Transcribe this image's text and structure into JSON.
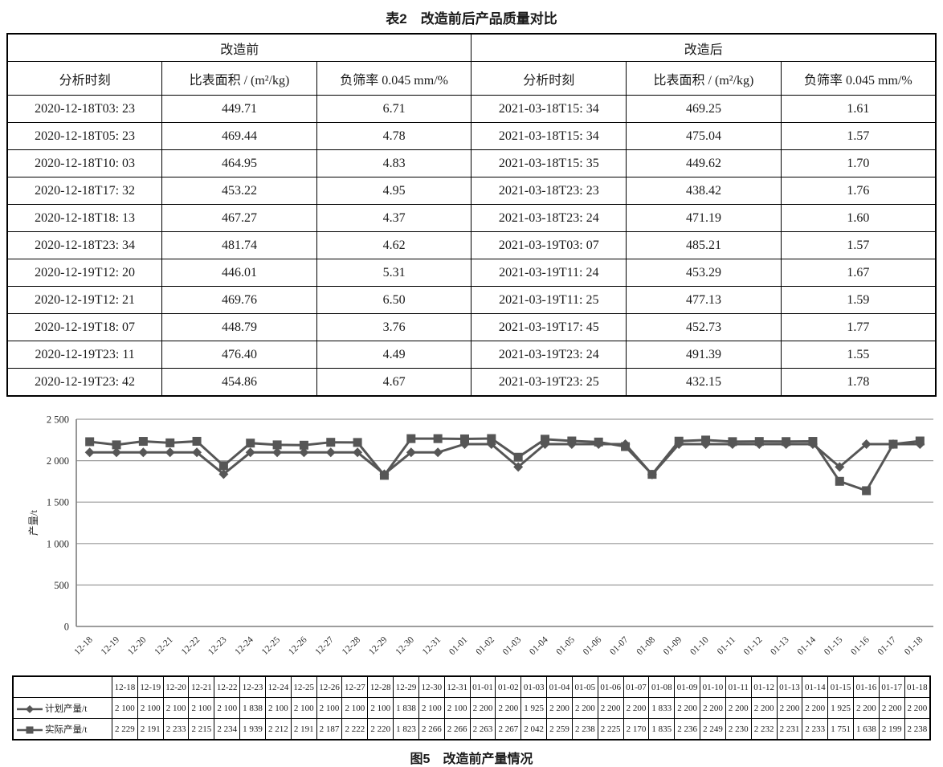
{
  "page": {
    "table_title": "表2　改造前后产品质量对比",
    "figure_caption": "图5　改造前产量情况"
  },
  "quality_table": {
    "group_headers": [
      "改造前",
      "改造后"
    ],
    "col_headers": [
      "分析时刻",
      "比表面积 / (m²/kg)",
      "负筛率 0.045 mm/%",
      "分析时刻",
      "比表面积 / (m²/kg)",
      "负筛率 0.045 mm/%"
    ],
    "rows": [
      [
        "2020-12-18T03: 23",
        "449.71",
        "6.71",
        "2021-03-18T15: 34",
        "469.25",
        "1.61"
      ],
      [
        "2020-12-18T05: 23",
        "469.44",
        "4.78",
        "2021-03-18T15: 34",
        "475.04",
        "1.57"
      ],
      [
        "2020-12-18T10: 03",
        "464.95",
        "4.83",
        "2021-03-18T15: 35",
        "449.62",
        "1.70"
      ],
      [
        "2020-12-18T17: 32",
        "453.22",
        "4.95",
        "2021-03-18T23: 23",
        "438.42",
        "1.76"
      ],
      [
        "2020-12-18T18: 13",
        "467.27",
        "4.37",
        "2021-03-18T23: 24",
        "471.19",
        "1.60"
      ],
      [
        "2020-12-18T23: 34",
        "481.74",
        "4.62",
        "2021-03-19T03: 07",
        "485.21",
        "1.57"
      ],
      [
        "2020-12-19T12: 20",
        "446.01",
        "5.31",
        "2021-03-19T11: 24",
        "453.29",
        "1.67"
      ],
      [
        "2020-12-19T12: 21",
        "469.76",
        "6.50",
        "2021-03-19T11: 25",
        "477.13",
        "1.59"
      ],
      [
        "2020-12-19T18: 07",
        "448.79",
        "3.76",
        "2021-03-19T17: 45",
        "452.73",
        "1.77"
      ],
      [
        "2020-12-19T23: 11",
        "476.40",
        "4.49",
        "2021-03-19T23: 24",
        "491.39",
        "1.55"
      ],
      [
        "2020-12-19T23: 42",
        "454.86",
        "4.67",
        "2021-03-19T23: 25",
        "432.15",
        "1.78"
      ]
    ]
  },
  "chart_data": {
    "type": "line",
    "title": "",
    "xlabel": "",
    "ylabel": "产量/t",
    "ylim": [
      0,
      2500
    ],
    "ytick_interval": 500,
    "ytick_labels": [
      "0",
      "500",
      "1 000",
      "1 500",
      "2 000",
      "2 500"
    ],
    "grid": true,
    "legend_position": "table-left",
    "line_color": "#565656",
    "grid_color": "#9a9a9a",
    "axis_color": "#7d7d7d",
    "categories": [
      "12-18",
      "12-19",
      "12-20",
      "12-21",
      "12-22",
      "12-23",
      "12-24",
      "12-25",
      "12-26",
      "12-27",
      "12-28",
      "12-29",
      "12-30",
      "12-31",
      "01-01",
      "01-02",
      "01-03",
      "01-04",
      "01-05",
      "01-06",
      "01-07",
      "01-08",
      "01-09",
      "01-10",
      "01-11",
      "01-12",
      "01-13",
      "01-14",
      "01-15",
      "01-16",
      "01-17",
      "01-18"
    ],
    "series": [
      {
        "name": "计划产量/t",
        "marker": "diamond",
        "values": [
          2100,
          2100,
          2100,
          2100,
          2100,
          1838,
          2100,
          2100,
          2100,
          2100,
          2100,
          1838,
          2100,
          2100,
          2200,
          2200,
          1925,
          2200,
          2200,
          2200,
          2200,
          1833,
          2200,
          2200,
          2200,
          2200,
          2200,
          2200,
          1925,
          2200,
          2200,
          2200
        ]
      },
      {
        "name": "实际产量/t",
        "marker": "square",
        "values": [
          2229,
          2191,
          2233,
          2215,
          2234,
          1939,
          2212,
          2191,
          2187,
          2222,
          2220,
          1823,
          2266,
          2266,
          2263,
          2267,
          2042,
          2259,
          2238,
          2225,
          2170,
          1835,
          2236,
          2249,
          2230,
          2232,
          2231,
          2233,
          1751,
          1638,
          2199,
          2238
        ]
      }
    ]
  }
}
